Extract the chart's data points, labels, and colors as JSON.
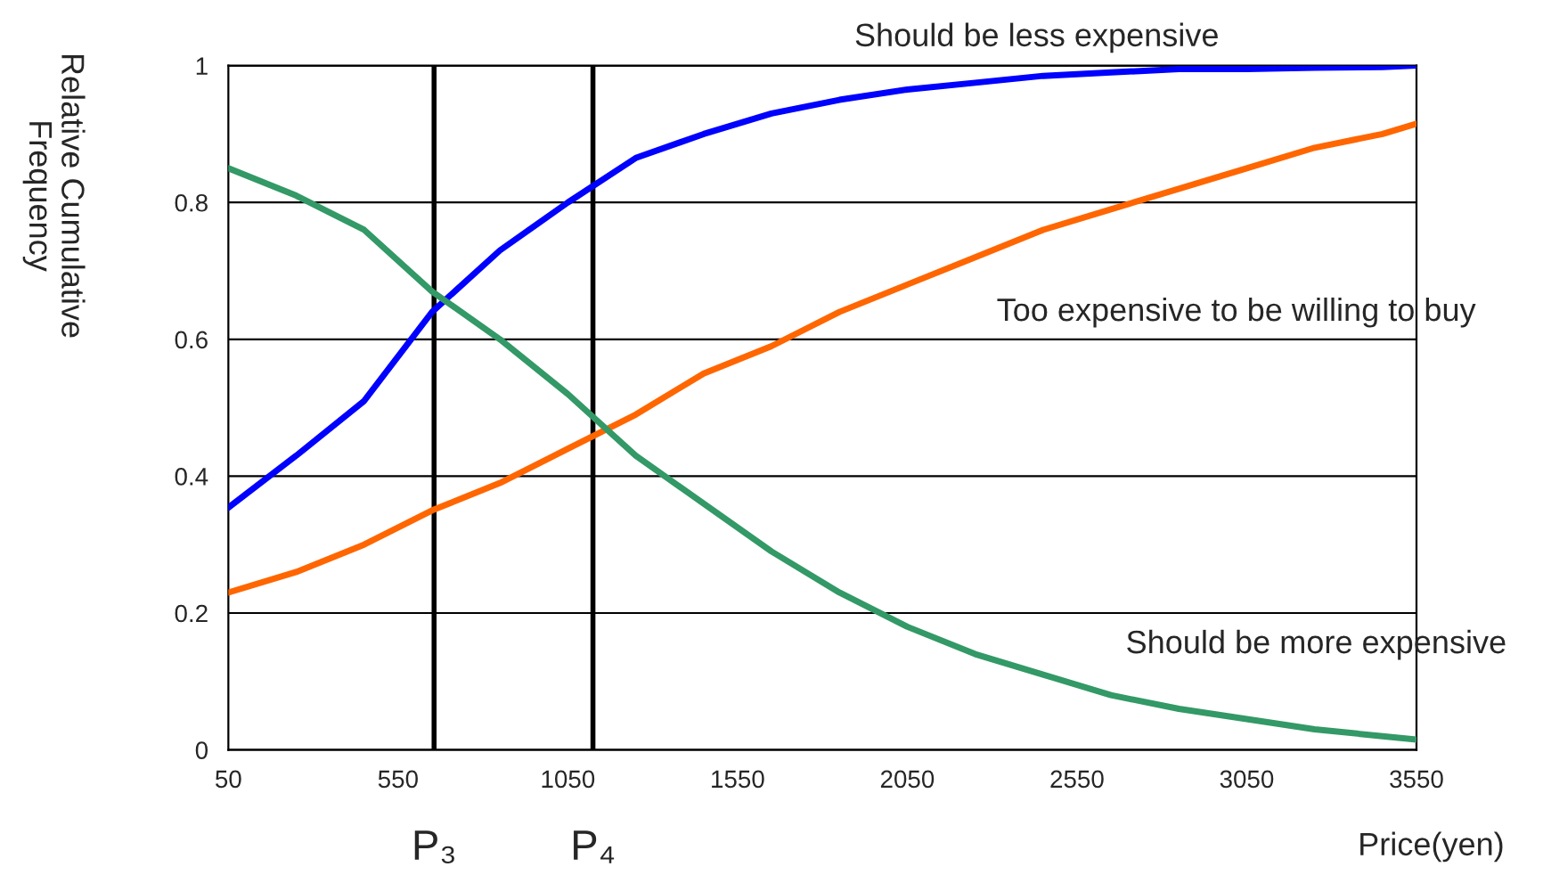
{
  "chart_data": {
    "type": "line",
    "xlabel": "Price(yen)",
    "ylabel": "Relative Cumulative\nFrequency",
    "x": [
      50,
      250,
      450,
      650,
      850,
      1050,
      1250,
      1450,
      1650,
      1850,
      2050,
      2250,
      2450,
      2650,
      2850,
      3050,
      3250,
      3450,
      3550
    ],
    "series": [
      {
        "name": "Should be less expensive",
        "color": "#0000ff",
        "values": [
          0.354,
          0.43,
          0.51,
          0.64,
          0.73,
          0.8,
          0.865,
          0.9,
          0.93,
          0.95,
          0.965,
          0.975,
          0.985,
          0.99,
          0.995,
          0.995,
          0.997,
          0.998,
          1.0
        ]
      },
      {
        "name": "Too expensive to be willing to buy",
        "color": "#ff6600",
        "values": [
          0.23,
          0.26,
          0.3,
          0.35,
          0.39,
          0.44,
          0.49,
          0.55,
          0.59,
          0.64,
          0.68,
          0.72,
          0.76,
          0.79,
          0.82,
          0.85,
          0.88,
          0.9,
          0.915
        ]
      },
      {
        "name": "Should be more expensive",
        "color": "#339966",
        "values": [
          0.85,
          0.81,
          0.76,
          0.67,
          0.6,
          0.52,
          0.43,
          0.36,
          0.29,
          0.23,
          0.18,
          0.14,
          0.11,
          0.08,
          0.06,
          0.045,
          0.03,
          0.02,
          0.015
        ]
      }
    ],
    "xlim": [
      50,
      3550
    ],
    "xticks": [
      50,
      550,
      1050,
      1550,
      2050,
      2550,
      3050,
      3550
    ],
    "ylim": [
      0,
      1
    ],
    "yticks": [
      0,
      0.2,
      0.4,
      0.6,
      0.8,
      1
    ],
    "ref_lines": [
      {
        "axis": "x",
        "value": 656,
        "label": "P₃",
        "color": "#000000"
      },
      {
        "axis": "x",
        "value": 1124,
        "label": "P₄",
        "color": "#000000"
      }
    ],
    "grid": "y",
    "legend": false,
    "marker": "none",
    "line_style": "solid"
  }
}
